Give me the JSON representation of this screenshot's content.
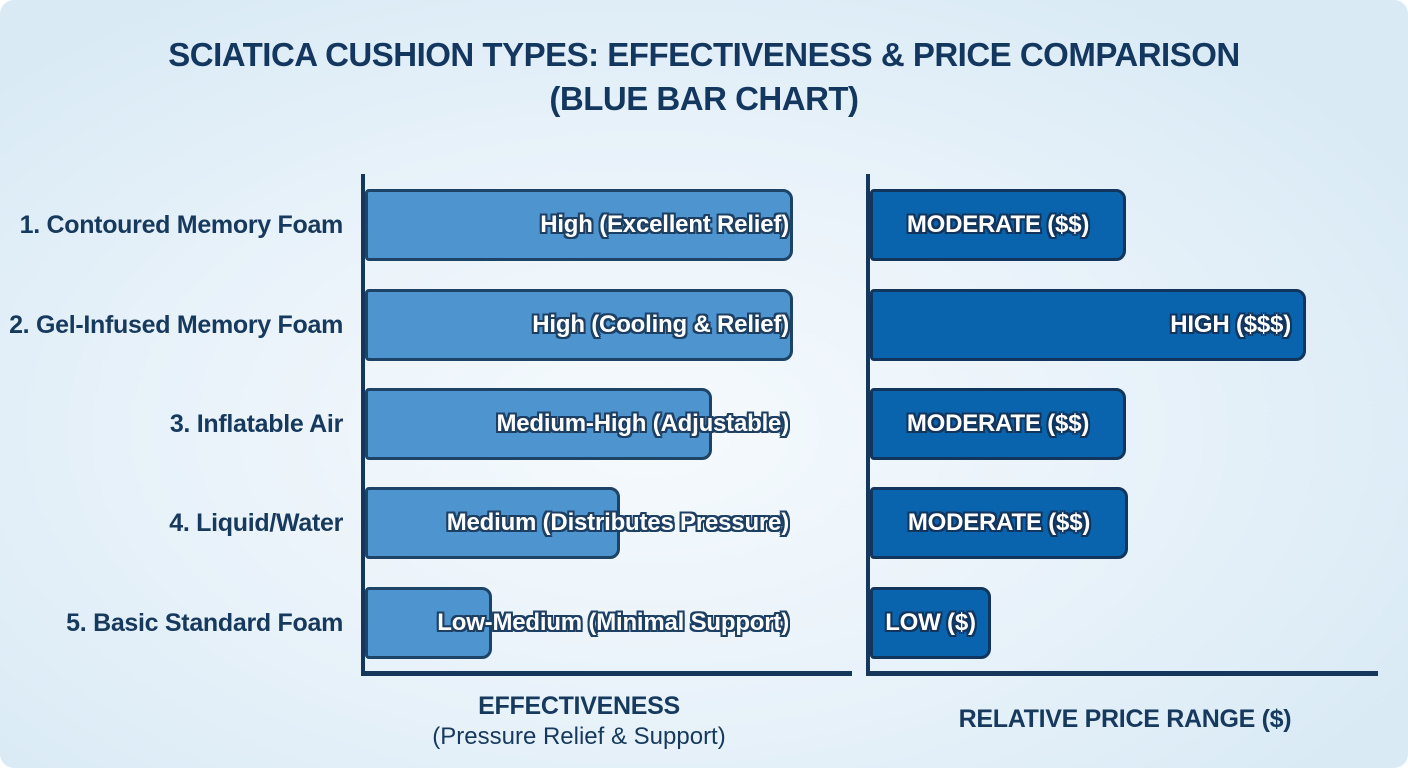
{
  "title": {
    "line1": "SCIATICA CUSHION TYPES: EFFECTIVENESS & PRICE COMPARISON",
    "line2": "(BLUE BAR CHART)"
  },
  "axes": {
    "effectiveness_title_line1": "EFFECTIVENESS",
    "effectiveness_title_line2": "(Pressure Relief & Support)",
    "price_title": "RELATIVE PRICE RANGE ($)"
  },
  "colors": {
    "background_edge": "#d9eaf5",
    "background_center": "#f5fafd",
    "title_text": "#14375f",
    "effectiveness_bar_fill": "#4e94cf",
    "effectiveness_bar_border": "#1d4366",
    "price_bar_fill": "#0a64ad",
    "price_bar_border": "#12355e",
    "axis_line": "#16375c",
    "bar_label_text": "#ffffff"
  },
  "chart_data": {
    "type": "bar",
    "orientation": "horizontal",
    "title": "SCIATICA CUSHION TYPES: EFFECTIVENESS & PRICE COMPARISON (BLUE BAR CHART)",
    "categories": [
      "1. Contoured Memory Foam",
      "2. Gel-Infused Memory Foam",
      "3. Inflatable Air",
      "4. Liquid/Water",
      "5. Basic Standard Foam"
    ],
    "series": [
      {
        "name": "EFFECTIVENESS (Pressure Relief & Support)",
        "value_labels": [
          "High (Excellent Relief)",
          "High (Cooling & Relief)",
          "Medium-High (Adjustable)",
          "Medium (Distributes Pressure)",
          "Low-Medium (Minimal Support)"
        ],
        "values": [
          100,
          100,
          81,
          60,
          29
        ]
      },
      {
        "name": "RELATIVE PRICE RANGE ($)",
        "value_labels": [
          "MODERATE ($$)",
          "HIGH ($$$)",
          "MODERATE ($$)",
          "MODERATE ($$)",
          "LOW ($)"
        ],
        "values": [
          59,
          100,
          59,
          59,
          28
        ]
      }
    ],
    "legend": false,
    "grid": false
  },
  "rows": [
    {
      "category": "1. Contoured Memory Foam",
      "eff_label": "High (Excellent Relief)",
      "eff_width": 428,
      "price_label": "MODERATE ($$)",
      "price_width": 256,
      "price_justify": "center"
    },
    {
      "category": "2. Gel-Infused Memory Foam",
      "eff_label": "High (Cooling & Relief)",
      "eff_width": 428,
      "price_label": "HIGH ($$$)",
      "price_width": 436,
      "price_justify": "flex-end"
    },
    {
      "category": "3. Inflatable Air",
      "eff_label": "Medium-High (Adjustable)",
      "eff_width": 347,
      "price_label": "MODERATE ($$)",
      "price_width": 256,
      "price_justify": "center"
    },
    {
      "category": "4. Liquid/Water",
      "eff_label": "Medium (Distributes Pressure)",
      "eff_width": 255,
      "price_label": "MODERATE ($$)",
      "price_width": 258,
      "price_justify": "center"
    },
    {
      "category": "5. Basic Standard Foam",
      "eff_label": "Low-Medium (Minimal Support)",
      "eff_width": 127,
      "price_label": "LOW ($)",
      "price_width": 121,
      "price_justify": "center"
    }
  ]
}
